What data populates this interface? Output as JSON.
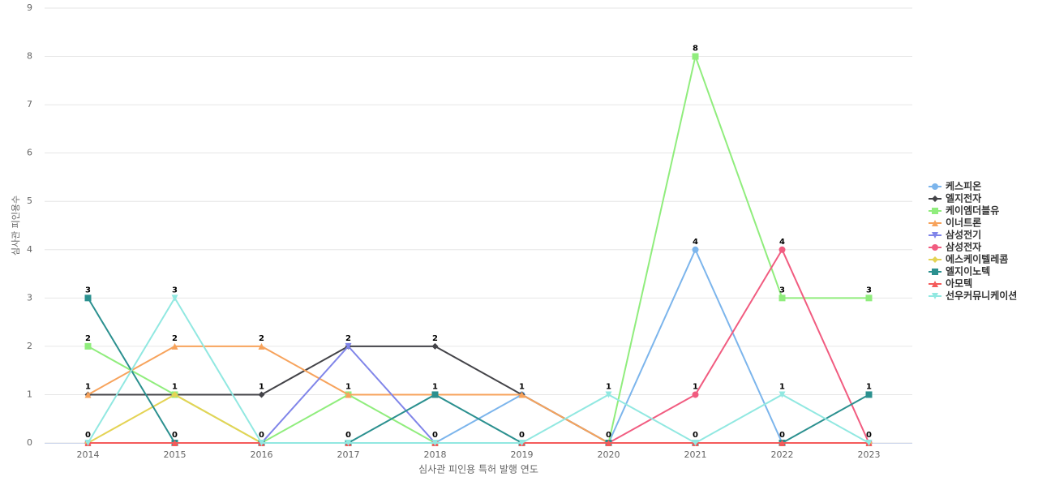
{
  "chart_data": {
    "type": "line",
    "x_label": "심사관 피인용 특허 발행 연도",
    "y_label": "심사관 피인용수",
    "categories": [
      "2014",
      "2015",
      "2016",
      "2017",
      "2018",
      "2019",
      "2020",
      "2021",
      "2022",
      "2023"
    ],
    "ylim": [
      0,
      9
    ],
    "yticks": [
      0,
      1,
      2,
      3,
      4,
      5,
      6,
      7,
      8,
      9
    ],
    "grid": true,
    "legend": "right",
    "series": [
      {
        "name": "케스피온",
        "color": "#7cb5ec",
        "marker": "circle",
        "values": [
          0,
          0,
          0,
          0,
          0,
          1,
          0,
          4,
          0,
          0
        ]
      },
      {
        "name": "엘지전자",
        "color": "#434348",
        "marker": "diamond",
        "values": [
          1,
          1,
          1,
          2,
          2,
          1,
          0,
          0,
          0,
          0
        ]
      },
      {
        "name": "케이엠더블유",
        "color": "#90ed7d",
        "marker": "square",
        "values": [
          2,
          1,
          0,
          1,
          0,
          0,
          0,
          8,
          3,
          3
        ]
      },
      {
        "name": "이너트론",
        "color": "#f7a35c",
        "marker": "triangle",
        "values": [
          1,
          2,
          2,
          1,
          1,
          1,
          0,
          0,
          0,
          0
        ]
      },
      {
        "name": "삼성전기",
        "color": "#8085e9",
        "marker": "triangle-down",
        "values": [
          0,
          0,
          0,
          2,
          0,
          0,
          0,
          0,
          0,
          0
        ]
      },
      {
        "name": "삼성전자",
        "color": "#f15c80",
        "marker": "circle",
        "values": [
          0,
          0,
          0,
          0,
          0,
          0,
          0,
          1,
          4,
          0
        ]
      },
      {
        "name": "에스케이텔레콤",
        "color": "#e4d354",
        "marker": "diamond",
        "values": [
          0,
          1,
          0,
          0,
          0,
          0,
          0,
          0,
          0,
          0
        ]
      },
      {
        "name": "엘지이노텍",
        "color": "#2b908f",
        "marker": "square",
        "values": [
          3,
          0,
          0,
          0,
          1,
          0,
          0,
          0,
          0,
          1
        ]
      },
      {
        "name": "아모텍",
        "color": "#f45b5b",
        "marker": "triangle",
        "values": [
          0,
          0,
          0,
          0,
          0,
          0,
          0,
          0,
          0,
          0
        ]
      },
      {
        "name": "선우커뮤니케이션",
        "color": "#91e8e1",
        "marker": "triangle-down",
        "values": [
          0,
          3,
          0,
          0,
          0,
          0,
          1,
          0,
          1,
          0
        ]
      }
    ]
  }
}
